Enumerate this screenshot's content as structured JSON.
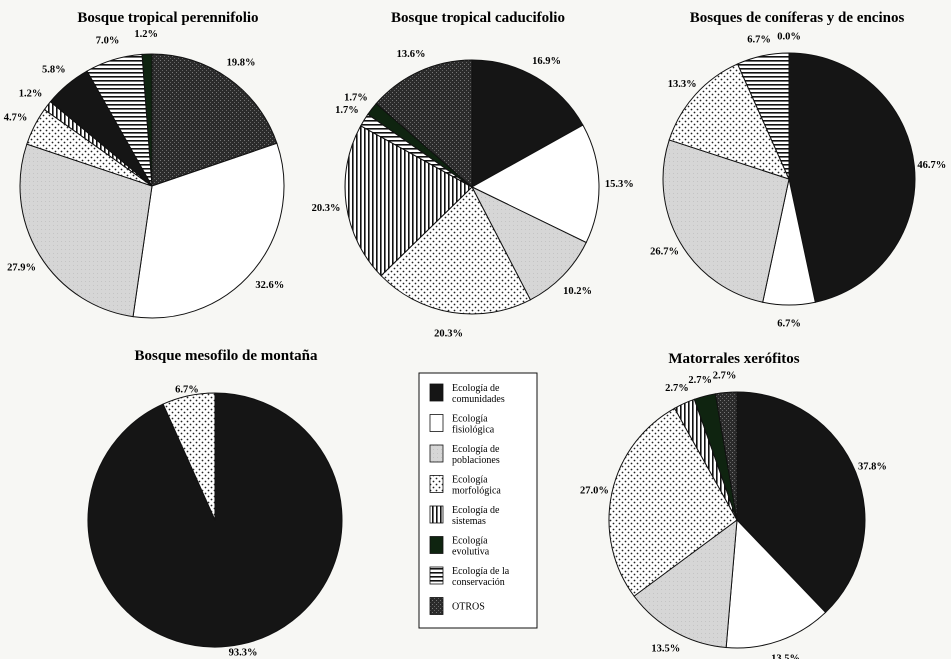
{
  "chart_data": [
    {
      "type": "pie",
      "title": "Bosque tropical perennifolio",
      "slices": [
        {
          "category": "OTROS",
          "value": 19.8,
          "label": "19.8%"
        },
        {
          "category": "Ecología fisiológica",
          "value": 32.6,
          "label": "32.6%"
        },
        {
          "category": "Ecología de poblaciones",
          "value": 27.9,
          "label": "27.9%"
        },
        {
          "category": "Ecología morfológica",
          "value": 4.7,
          "label": "4.7%"
        },
        {
          "category": "Ecología de sistemas",
          "value": 1.2,
          "label": "1.2%"
        },
        {
          "category": "Ecología de comunidades",
          "value": 5.8,
          "label": "5.8%"
        },
        {
          "category": "Ecología de la conservación",
          "value": 7.0,
          "label": "7.0%"
        },
        {
          "category": "Ecología evolutiva",
          "value": 1.2,
          "label": "1.2%"
        }
      ]
    },
    {
      "type": "pie",
      "title": "Bosque tropical caducifolio",
      "slices": [
        {
          "category": "Ecología de comunidades",
          "value": 16.9,
          "label": "16.9%"
        },
        {
          "category": "Ecología fisiológica",
          "value": 15.3,
          "label": "15.3%"
        },
        {
          "category": "Ecología de poblaciones",
          "value": 10.2,
          "label": "10.2%"
        },
        {
          "category": "Ecología morfológica",
          "value": 20.3,
          "label": "20.3%"
        },
        {
          "category": "Ecología de sistemas",
          "value": 20.3,
          "label": "20.3%"
        },
        {
          "category": "Ecología de la conservación",
          "value": 1.7,
          "label": "1.7%"
        },
        {
          "category": "Ecología evolutiva",
          "value": 1.7,
          "label": "1.7%"
        },
        {
          "category": "OTROS",
          "value": 13.6,
          "label": "13.6%"
        }
      ]
    },
    {
      "type": "pie",
      "title": "Bosques de coníferas y de encinos",
      "slices": [
        {
          "category": "Ecología de comunidades",
          "value": 46.7,
          "label": "46.7%"
        },
        {
          "category": "Ecología fisiológica",
          "value": 6.7,
          "label": "6.7%"
        },
        {
          "category": "Ecología de poblaciones",
          "value": 26.7,
          "label": "26.7%"
        },
        {
          "category": "Ecología morfológica",
          "value": 13.3,
          "label": "13.3%"
        },
        {
          "category": "Ecología de la conservación",
          "value": 6.7,
          "label": "6.7%"
        },
        {
          "category": "OTROS",
          "value": 0.0,
          "label": "0.0%"
        }
      ]
    },
    {
      "type": "pie",
      "title": "Bosque mesofilo de montaña",
      "slices": [
        {
          "category": "Ecología de comunidades",
          "value": 93.3,
          "label": "93.3%"
        },
        {
          "category": "Ecología morfológica",
          "value": 6.7,
          "label": "6.7%"
        }
      ]
    },
    {
      "type": "pie",
      "title": "Matorrales xerófitos",
      "slices": [
        {
          "category": "Ecología de comunidades",
          "value": 37.8,
          "label": "37.8%"
        },
        {
          "category": "Ecología fisiológica",
          "value": 13.5,
          "label": "13.5%"
        },
        {
          "category": "Ecología de poblaciones",
          "value": 13.5,
          "label": "13.5%"
        },
        {
          "category": "Ecología morfológica",
          "value": 27.0,
          "label": "27.0%"
        },
        {
          "category": "Ecología de sistemas",
          "value": 2.7,
          "label": "2.7%"
        },
        {
          "category": "Ecología evolutiva",
          "value": 2.7,
          "label": "2.7%"
        },
        {
          "category": "OTROS",
          "value": 2.7,
          "label": "2.7%"
        }
      ]
    }
  ],
  "legend": [
    {
      "category": "Ecología de comunidades",
      "lines": [
        "Ecología de",
        "comunidades"
      ],
      "pattern": "solid-dark",
      "color": "#151515"
    },
    {
      "category": "Ecología fisiológica",
      "lines": [
        "Ecología",
        "fisiológica"
      ],
      "pattern": "white",
      "color": "#ffffff"
    },
    {
      "category": "Ecología de poblaciones",
      "lines": [
        "Ecología de",
        "poblaciones"
      ],
      "pattern": "light-gray",
      "color": "#d6d6d6"
    },
    {
      "category": "Ecología morfológica",
      "lines": [
        "Ecología",
        "morfológica"
      ],
      "pattern": "dots",
      "color": "#ffffff"
    },
    {
      "category": "Ecología de sistemas",
      "lines": [
        "Ecología de",
        "sistemas"
      ],
      "pattern": "vertical-lines",
      "color": "#ffffff"
    },
    {
      "category": "Ecología evolutiva",
      "lines": [
        "Ecología",
        "evolutiva"
      ],
      "pattern": "solid-green-dark",
      "color": "#0f2410"
    },
    {
      "category": "Ecología de la conservación",
      "lines": [
        "Ecología de la",
        "conservación"
      ],
      "pattern": "horizontal-lines",
      "color": "#ffffff"
    },
    {
      "category": "OTROS",
      "lines": [
        "OTROS"
      ],
      "pattern": "dark-texture",
      "color": "#2b2b2b"
    }
  ]
}
